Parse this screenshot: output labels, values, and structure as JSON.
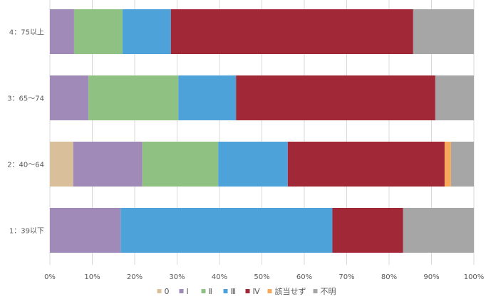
{
  "chart_data": {
    "type": "bar",
    "orientation": "horizontal",
    "stacked": "percent",
    "categories": [
      "4：75以上",
      "3：65〜74",
      "2：40〜64",
      "1：39以下"
    ],
    "series": [
      {
        "name": "0",
        "color": "#D9BF9A",
        "values": [
          0,
          0,
          5.5,
          0
        ]
      },
      {
        "name": "Ⅰ",
        "color": "#A08AB8",
        "values": [
          5.7,
          9.1,
          16.3,
          16.7
        ]
      },
      {
        "name": "Ⅱ",
        "color": "#8FC183",
        "values": [
          11.4,
          21.2,
          17.9,
          0
        ]
      },
      {
        "name": "Ⅲ",
        "color": "#4DA3D9",
        "values": [
          11.4,
          13.6,
          16.4,
          50.0
        ]
      },
      {
        "name": "Ⅳ",
        "color": "#A12837",
        "values": [
          57.1,
          47.0,
          37.0,
          16.7
        ]
      },
      {
        "name": "該当せず",
        "color": "#F6A95B",
        "values": [
          0,
          0,
          1.5,
          0
        ]
      },
      {
        "name": "不明",
        "color": "#A6A6A6",
        "values": [
          14.3,
          9.1,
          5.4,
          16.7
        ]
      }
    ],
    "xlim": [
      0,
      100
    ],
    "xticks": [
      "0%",
      "10%",
      "20%",
      "30%",
      "40%",
      "50%",
      "60%",
      "70%",
      "80%",
      "90%",
      "100%"
    ],
    "grid": true,
    "legend": "bottom"
  }
}
